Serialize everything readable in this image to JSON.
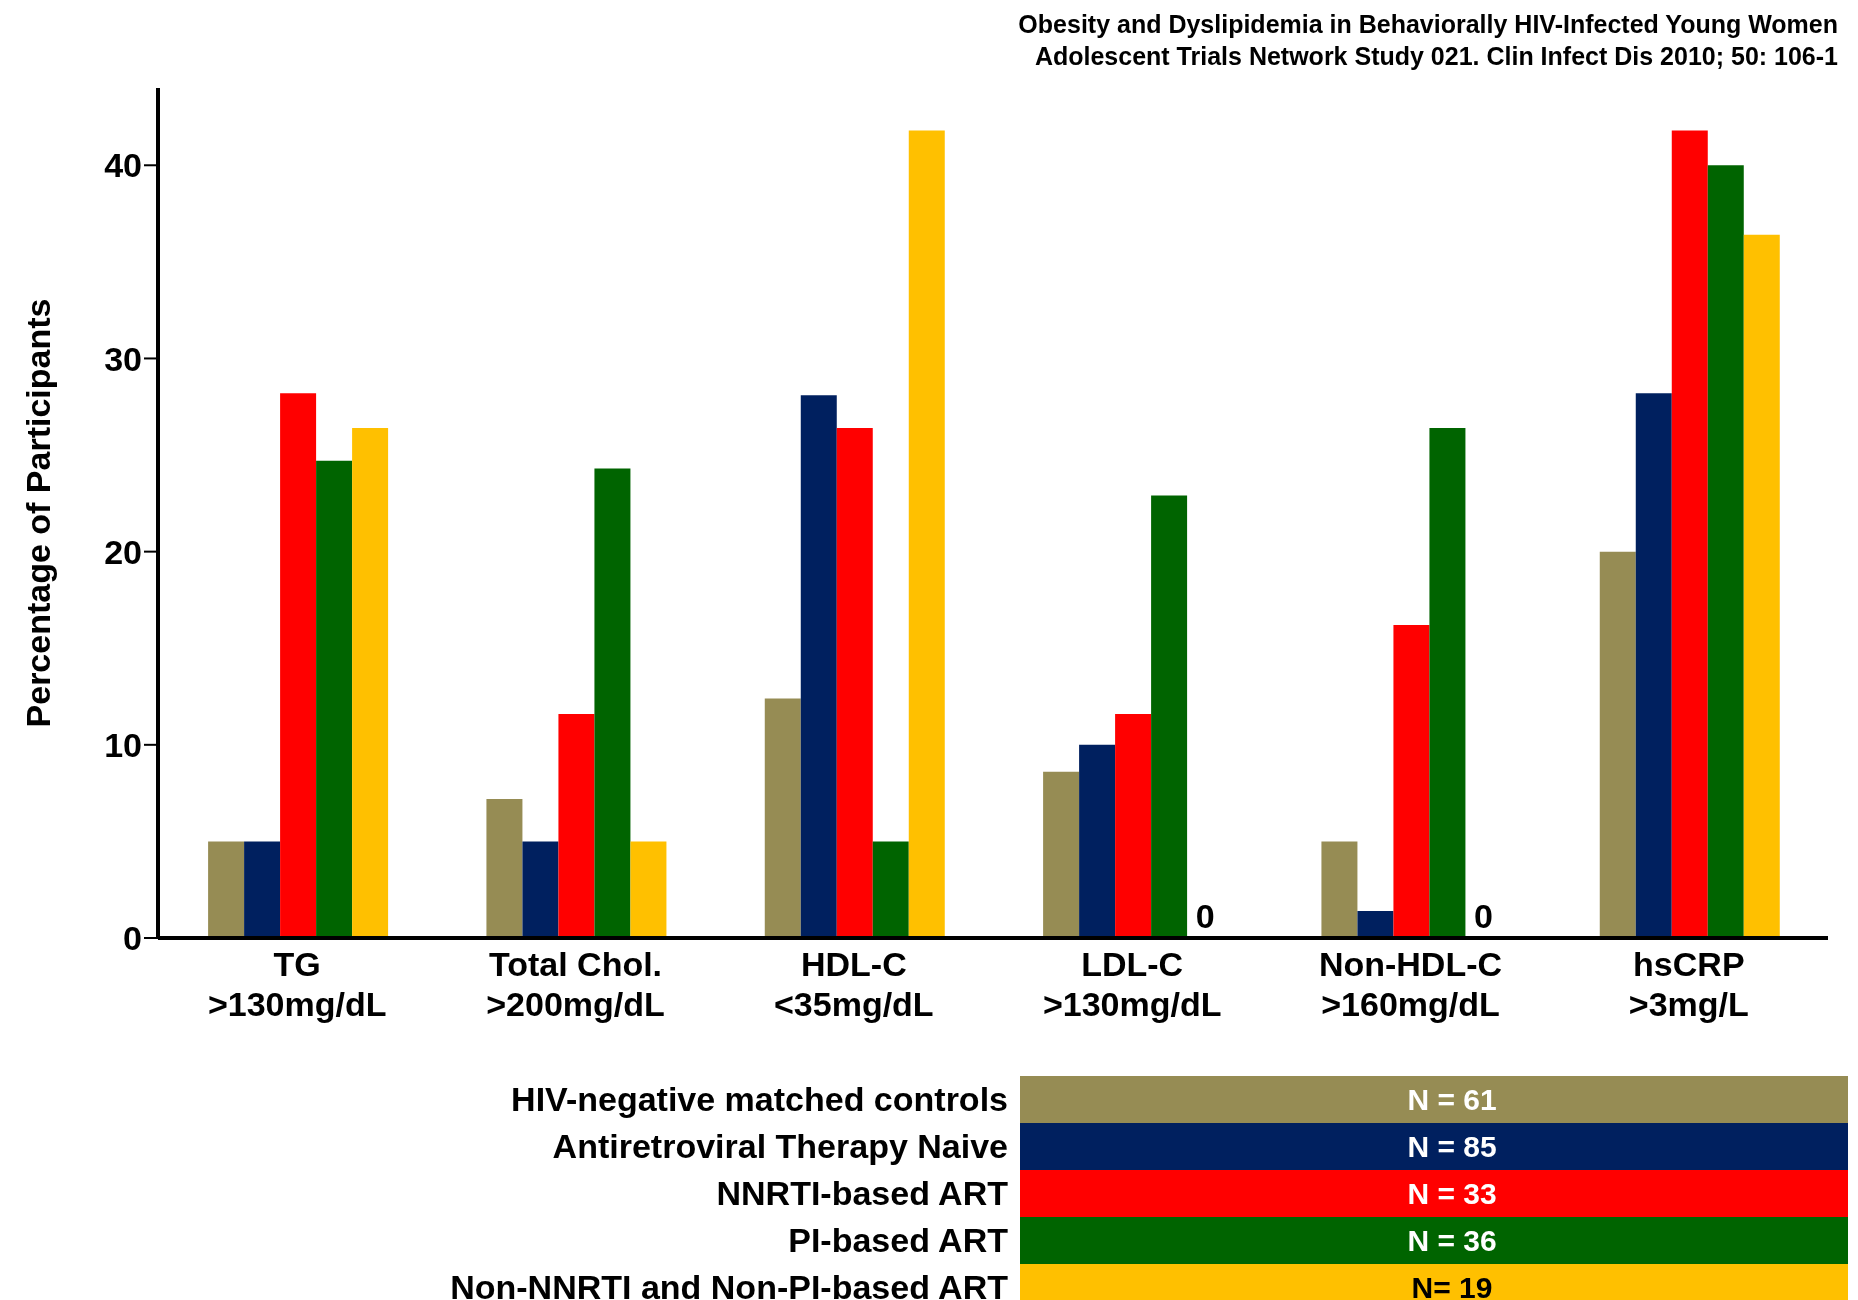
{
  "chart_data": {
    "type": "bar",
    "annotations": [
      "Obesity and Dyslipidemia in Behaviorally HIV-Infected Young Women",
      "Adolescent Trials Network Study 021. Clin Infect Dis 2010; 50: 106-1",
      "N = 61",
      "N = 85",
      "N = 33",
      "N = 36",
      "N= 19"
    ],
    "ylabel": "Percentage of Participants",
    "categories": [
      "TG >130mg/dL",
      "Total Chol. >200mg/dL",
      "HDL-C <35mg/dL",
      "LDL-C >130mg/dL",
      "Non-HDL-C >160mg/dL",
      "hsCRP >3mg/L"
    ],
    "series": [
      {
        "name": "HIV-negative matched controls",
        "color": "#968c54",
        "values": [
          5.0,
          7.2,
          12.4,
          8.6,
          5.0,
          20
        ]
      },
      {
        "name": "Antiretroviral Therapy Naive",
        "color": "#00205f",
        "values": [
          5.0,
          5.0,
          28.1,
          10,
          1.4,
          28.2
        ]
      },
      {
        "name": "NNRTI-based ART",
        "color": "#ff0000",
        "values": [
          28.2,
          11.6,
          26.4,
          11.6,
          16.2,
          41.8
        ]
      },
      {
        "name": "PI-based ART",
        "color": "#006400",
        "values": [
          24.7,
          24.3,
          5.0,
          22.9,
          26.4,
          40
        ]
      },
      {
        "name": "Non-NNRTI and Non-PI-based ART",
        "color": "#ffc000",
        "values": [
          26.4,
          5.0,
          41.8,
          0,
          0,
          36.4
        ],
        "value_labels": [
          null,
          null,
          null,
          "0",
          "0",
          null
        ]
      }
    ],
    "ylim": [
      0,
      44
    ],
    "yticks": [
      0,
      10,
      20,
      30,
      40
    ],
    "legend": "bottom"
  }
}
